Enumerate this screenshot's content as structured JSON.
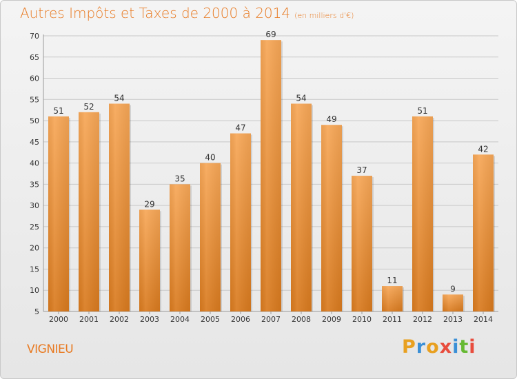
{
  "header": {
    "title": "Autres Impôts et Taxes de 2000 à 2014",
    "unit": "(en milliers d'€)"
  },
  "footer": {
    "commune": "VIGNIEU",
    "logo_text": "Proxiti",
    "logo_colors": [
      "#e8a020",
      "#3a8fd6",
      "#e8a020",
      "#e84c3d",
      "#3a8fd6",
      "#66b933",
      "#e84c3d"
    ]
  },
  "colors": {
    "bar_light": "#f7a757",
    "bar_dark": "#d97a1e",
    "title": "#e87a22",
    "grid": "#c8c8c8"
  },
  "chart_data": {
    "type": "bar",
    "title": "Autres Impôts et Taxes de 2000 à 2014",
    "xlabel": "",
    "ylabel": "",
    "categories": [
      "2000",
      "2001",
      "2002",
      "2003",
      "2004",
      "2005",
      "2006",
      "2007",
      "2008",
      "2009",
      "2010",
      "2011",
      "2012",
      "2013",
      "2014"
    ],
    "values": [
      51,
      52,
      54,
      29,
      35,
      40,
      47,
      69,
      54,
      49,
      37,
      11,
      51,
      9,
      42
    ],
    "ylim": [
      5,
      70
    ],
    "yticks": [
      5,
      10,
      15,
      20,
      25,
      30,
      35,
      40,
      45,
      50,
      55,
      60,
      65,
      70
    ],
    "grid": true
  }
}
